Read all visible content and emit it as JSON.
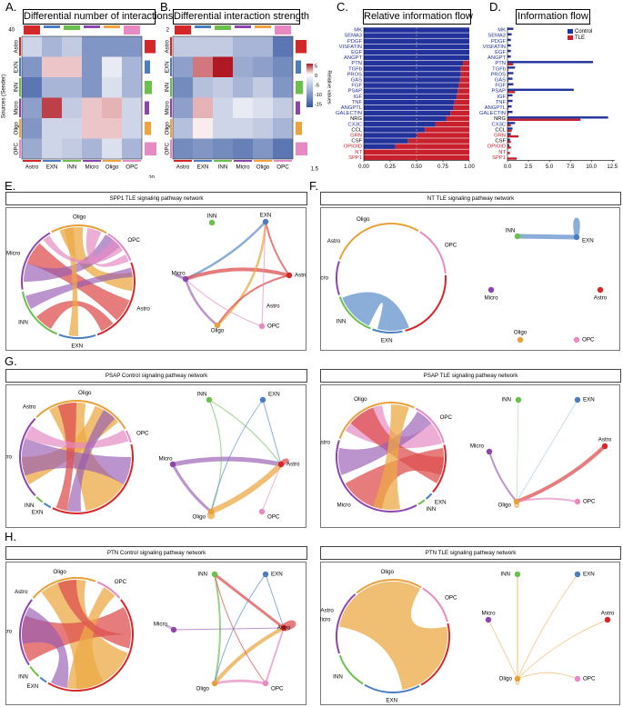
{
  "letters": {
    "a": "A.",
    "b": "B.",
    "c": "C.",
    "d": "D.",
    "e": "E.",
    "f": "F.",
    "g": "G.",
    "h": "H."
  },
  "heatmap_a": {
    "title": "Differential number of interactions",
    "ylabel": "Sources (Sender)",
    "bar_top_tick": "40",
    "bar_right_tick": "20",
    "groups": [
      "Astro",
      "EXN",
      "INN",
      "Micro",
      "Oligo",
      "OPC"
    ],
    "group_colors": [
      "#d62728",
      "#4a7ec1",
      "#6bbf4b",
      "#8e44ad",
      "#f0a33a",
      "#e78ac3"
    ],
    "values": [
      [
        -3,
        -6,
        -4,
        -9,
        -9,
        -9
      ],
      [
        -9,
        3,
        3,
        -9,
        -1,
        -6
      ],
      [
        -12,
        -6,
        -6,
        -9,
        -2,
        -6
      ],
      [
        -8,
        10,
        -4,
        3,
        4,
        -3
      ],
      [
        -9,
        -3,
        -3,
        3,
        3,
        -3
      ],
      [
        -7,
        -3,
        -4,
        -6,
        -2,
        -6
      ]
    ]
  },
  "heatmap_b": {
    "title": "Differential interaction strength",
    "bar_top_tick": "2",
    "bar_right_tick": "1.5",
    "legend_title": "Relative values",
    "legend_ticks": [
      "5",
      "0",
      "-5",
      "-10",
      "-15"
    ],
    "groups": [
      "Astro",
      "EXN",
      "INN",
      "Micro",
      "Oligo",
      "OPC"
    ],
    "values": [
      [
        -4,
        -4,
        -4,
        -6,
        -6,
        -12
      ],
      [
        -8,
        7,
        12,
        -7,
        -8,
        -10
      ],
      [
        -10,
        -5,
        -4,
        -6,
        -4,
        -9
      ],
      [
        -8,
        4,
        -3,
        -1,
        -2,
        -4
      ],
      [
        -5,
        1,
        -3,
        -3,
        -4,
        -6
      ],
      [
        -10,
        -9,
        -10,
        -11,
        -9,
        -12
      ]
    ]
  },
  "chart_data": [
    {
      "type": "bar",
      "title": "Relative information flow",
      "orientation": "horizontal-stacked",
      "categories": [
        "MK",
        "SEMA3",
        "PDGF",
        "VISFATIN",
        "EGF",
        "ANGPT",
        "PTN",
        "TGFb",
        "PROS",
        "GAS",
        "FGF",
        "PSAP",
        "IGF",
        "TNF",
        "ANGPTL",
        "GALECTIN",
        "NRG",
        "CX3C",
        "CCL",
        "GRN",
        "CSF",
        "OPIOID",
        "NT",
        "SPP1"
      ],
      "category_colors": [
        "blue",
        "blue",
        "blue",
        "blue",
        "blue",
        "blue",
        "blue",
        "blue",
        "blue",
        "blue",
        "blue",
        "blue",
        "blue",
        "blue",
        "blue",
        "blue",
        "black",
        "blue",
        "black",
        "red",
        "black",
        "red",
        "red",
        "red"
      ],
      "series": [
        {
          "name": "Control",
          "color": "#23319a",
          "values": [
            1,
            1,
            1,
            1,
            1,
            1,
            0.94,
            0.92,
            0.92,
            0.91,
            0.9,
            0.89,
            0.88,
            0.86,
            0.85,
            0.82,
            0.78,
            0.68,
            0.58,
            0.5,
            0.42,
            0.3,
            0,
            0
          ]
        },
        {
          "name": "TLE",
          "color": "#c8202d",
          "values": [
            0,
            0,
            0,
            0,
            0,
            0,
            0.06,
            0.08,
            0.08,
            0.09,
            0.1,
            0.11,
            0.12,
            0.14,
            0.15,
            0.18,
            0.22,
            0.32,
            0.42,
            0.5,
            0.58,
            0.7,
            1,
            1
          ]
        }
      ],
      "xticks": [
        "0.00",
        "0.25",
        "0.50",
        "0.75",
        "1.00"
      ],
      "xlim": [
        0,
        1
      ]
    },
    {
      "type": "bar",
      "title": "Information flow",
      "orientation": "horizontal-grouped",
      "categories": [
        "MK",
        "SEMA3",
        "PDGF",
        "VISFATIN",
        "EGF",
        "ANGPT",
        "PTN",
        "TGFb",
        "PROS",
        "GAS",
        "FGF",
        "PSAP",
        "IGF",
        "TNF",
        "ANGPTL",
        "GALECTIN",
        "NRG",
        "CX3C",
        "CCL",
        "GRN",
        "CSF",
        "OPIOID",
        "NT",
        "SPP1"
      ],
      "series": [
        {
          "name": "Control",
          "color": "#23319a",
          "values": [
            0.7,
            0.5,
            0.4,
            0.4,
            0.4,
            0.4,
            10.2,
            0.9,
            0.7,
            0.6,
            0.7,
            7.9,
            0.6,
            0.6,
            0.5,
            0.6,
            12,
            0.9,
            0.6,
            0.4,
            0.3,
            0.2,
            0,
            0
          ]
        },
        {
          "name": "TLE",
          "color": "#c8202d",
          "values": [
            0,
            0,
            0,
            0,
            0,
            0,
            0.7,
            0.1,
            0.1,
            0.1,
            0.1,
            0.9,
            0.1,
            0.1,
            0.1,
            0.1,
            8.7,
            0.4,
            0.5,
            1.3,
            0.4,
            0.4,
            0.3,
            1.1
          ]
        }
      ],
      "xticks": [
        "0.0",
        "2.5",
        "5.0",
        "7.5",
        "10.0",
        "12.5"
      ],
      "xlim": [
        0,
        12.8
      ],
      "legend": [
        "Control",
        "TLE"
      ]
    }
  ],
  "networks": {
    "e_title": "SPP1 TLE signaling pathway network",
    "f_title": "NT TLE signaling pathway network",
    "g1_title": "PSAP Control signaling pathway network",
    "g2_title": "PSAP TLE signaling pathway network",
    "h1_title": "PTN Control signaling pathway network",
    "h2_title": "PTN TLE signaling pathway network",
    "cells": {
      "astro": "Astro",
      "exn": "EXN",
      "inn": "INN",
      "micro": "Micro",
      "oligo": "Oligo",
      "opc": "OPC"
    }
  }
}
